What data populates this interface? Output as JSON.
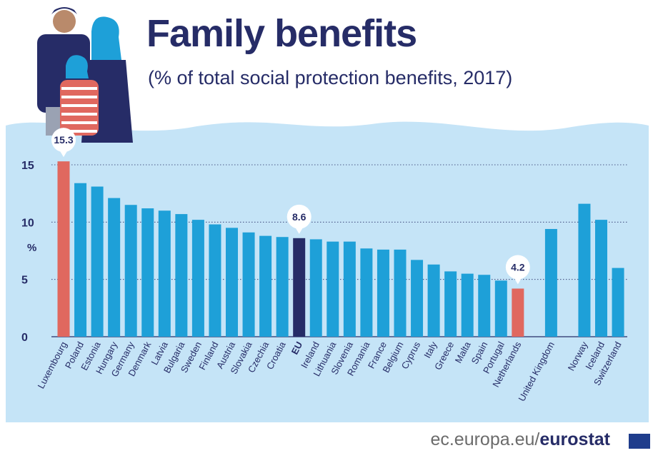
{
  "header": {
    "title": "Family benefits",
    "subtitle": "(% of total social protection benefits, 2017)"
  },
  "footer": {
    "site": "ec.europa.eu/",
    "brand": "eurostat"
  },
  "colors": {
    "bar": "#1ea0d8",
    "highlight": "#e0685f",
    "eu": "#262c67",
    "panel": "#c5e4f7",
    "title": "#262c67"
  },
  "icons": [
    "family-illustration",
    "eu-flag-icon"
  ],
  "chart_data": {
    "type": "bar",
    "title": "Family benefits",
    "subtitle": "(% of total social protection benefits, 2017)",
    "ylabel": "%",
    "ylim": [
      0,
      15
    ],
    "yticks": [
      0,
      5,
      10,
      15
    ],
    "grid": true,
    "categories": [
      "Luxembourg",
      "Poland",
      "Estonia",
      "Hungary",
      "Germany",
      "Denmark",
      "Latvia",
      "Bulgaria",
      "Sweden",
      "Finland",
      "Austria",
      "Slovakia",
      "Czechia",
      "Croatia",
      "EU",
      "Ireland",
      "Lithuania",
      "Slovenia",
      "Romania",
      "France",
      "Belgium",
      "Cyprus",
      "Italy",
      "Greece",
      "Malta",
      "Spain",
      "Portugal",
      "Netherlands",
      "United Kingdom",
      "Norway",
      "Iceland",
      "Switzerland"
    ],
    "values": [
      15.3,
      13.4,
      13.1,
      12.1,
      11.5,
      11.2,
      11.0,
      10.7,
      10.2,
      9.8,
      9.5,
      9.1,
      8.8,
      8.7,
      8.6,
      8.5,
      8.3,
      8.3,
      7.7,
      7.6,
      7.6,
      6.7,
      6.3,
      5.7,
      5.5,
      5.4,
      4.9,
      4.2,
      9.4,
      11.6,
      10.2,
      6.0
    ],
    "bar_styles": [
      "highlight",
      "normal",
      "normal",
      "normal",
      "normal",
      "normal",
      "normal",
      "normal",
      "normal",
      "normal",
      "normal",
      "normal",
      "normal",
      "normal",
      "eu",
      "normal",
      "normal",
      "normal",
      "normal",
      "normal",
      "normal",
      "normal",
      "normal",
      "normal",
      "normal",
      "normal",
      "normal",
      "highlight",
      "normal",
      "normal",
      "normal",
      "normal"
    ],
    "groups": [
      28,
      1,
      3
    ],
    "annotations": [
      {
        "category": "Luxembourg",
        "label": "15.3"
      },
      {
        "category": "EU",
        "label": "8.6"
      },
      {
        "category": "Netherlands",
        "label": "4.2"
      }
    ]
  }
}
